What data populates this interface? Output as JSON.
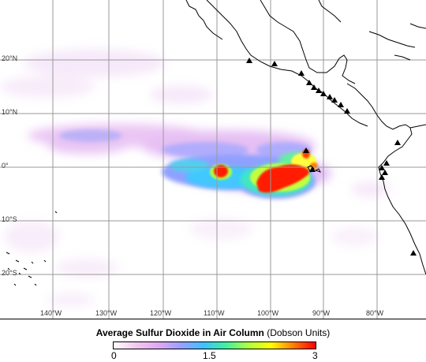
{
  "legend": {
    "title_bold": "Average Sulfur Dioxide in Air Column",
    "title_units": "(Dobson Units)",
    "min": "0",
    "mid": "1.5",
    "max": "3",
    "colors": [
      "#ffffff",
      "#f3c8f0",
      "#e0a8f0",
      "#9aa0ff",
      "#40c0ff",
      "#40f0a0",
      "#b0ff40",
      "#ffff00",
      "#ff8000",
      "#ff0000"
    ]
  },
  "map": {
    "latitude_labels": [
      "20°N",
      "10°N",
      "0°",
      "10°S",
      "20°S"
    ],
    "longitude_labels": [
      "140°W",
      "130°W",
      "120°W",
      "110°W",
      "100°W",
      "90°W",
      "80°W"
    ],
    "volcano_marker": "triangle-icon",
    "colors": {
      "background": "#ffffff",
      "grid": "#999999",
      "coastline": "#000000",
      "low_so2": "#e8c8f4",
      "mid_so2": "#8fa4ff",
      "high_so2": "#ff1a00"
    }
  }
}
